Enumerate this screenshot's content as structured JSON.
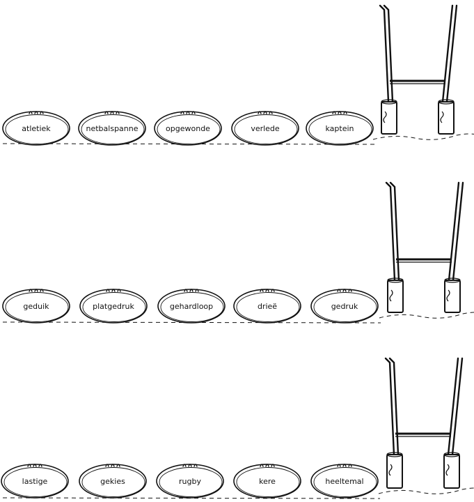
{
  "rows": [
    {
      "words": [
        "atletiek",
        "netbalspanne",
        "opgewonde",
        "verlede",
        "kaptein"
      ]
    },
    {
      "words": [
        "geduik",
        "platgedruk",
        "gehardloop",
        "drieë",
        "gedruk"
      ]
    },
    {
      "words": [
        "lastige",
        "gekies",
        "rugby",
        "kere",
        "heeltemal"
      ]
    }
  ],
  "colors": {
    "ink": "#111111",
    "background": "#ffffff"
  },
  "icons": {
    "ball": "rugby-ball-icon",
    "posts": "goal-posts-icon"
  }
}
